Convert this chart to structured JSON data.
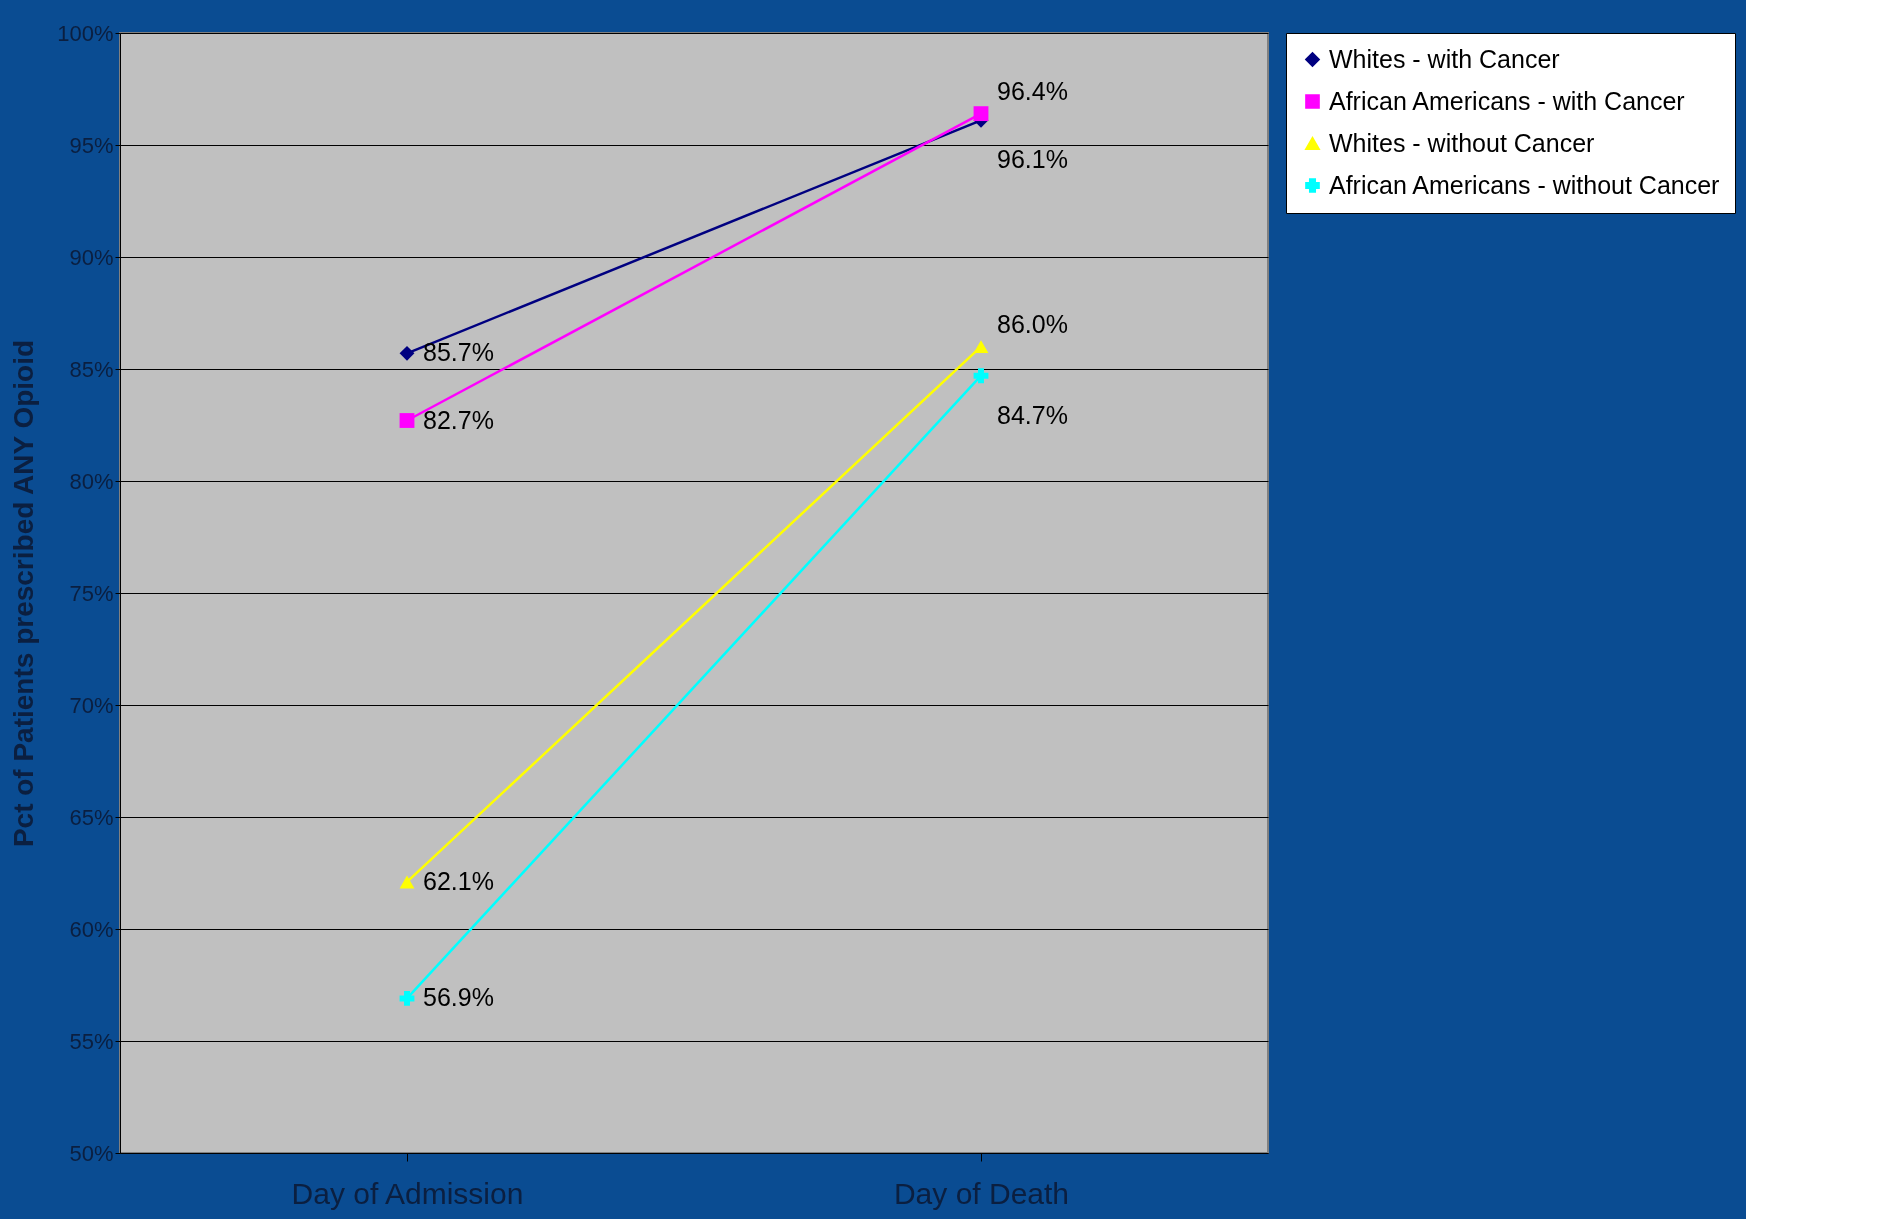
{
  "chart_data": {
    "type": "line",
    "ylabel": "Pct of Patients prescribed ANY Opioid",
    "categories": [
      "Day of Admission",
      "Day of Death"
    ],
    "series": [
      {
        "name": "Whites - with Cancer",
        "color": "#000080",
        "marker": "diamond",
        "values": [
          85.7,
          96.1
        ],
        "value_labels": [
          "85.7%",
          "96.1%"
        ]
      },
      {
        "name": "African Americans - with Cancer",
        "color": "#ff00ff",
        "marker": "square",
        "values": [
          82.7,
          96.4
        ],
        "value_labels": [
          "82.7%",
          "96.4%"
        ]
      },
      {
        "name": "Whites - without Cancer",
        "color": "#ffff00",
        "marker": "triangle",
        "values": [
          62.1,
          86.0
        ],
        "value_labels": [
          "62.1%",
          "86.0%"
        ]
      },
      {
        "name": "African Americans - without Cancer",
        "color": "#00ffff",
        "marker": "cross",
        "values": [
          56.9,
          84.7
        ],
        "value_labels": [
          "56.9%",
          "84.7%"
        ]
      }
    ],
    "ylim": [
      50,
      100
    ],
    "yticks": [
      {
        "value": 50,
        "label": "50%"
      },
      {
        "value": 55,
        "label": "55%"
      },
      {
        "value": 60,
        "label": "60%"
      },
      {
        "value": 65,
        "label": "65%"
      },
      {
        "value": 70,
        "label": "70%"
      },
      {
        "value": 75,
        "label": "75%"
      },
      {
        "value": 80,
        "label": "80%"
      },
      {
        "value": 85,
        "label": "85%"
      },
      {
        "value": 90,
        "label": "90%"
      },
      {
        "value": 95,
        "label": "95%"
      },
      {
        "value": 100,
        "label": "100%"
      }
    ],
    "grid": "y",
    "legend": "right",
    "line_style": "solid"
  }
}
